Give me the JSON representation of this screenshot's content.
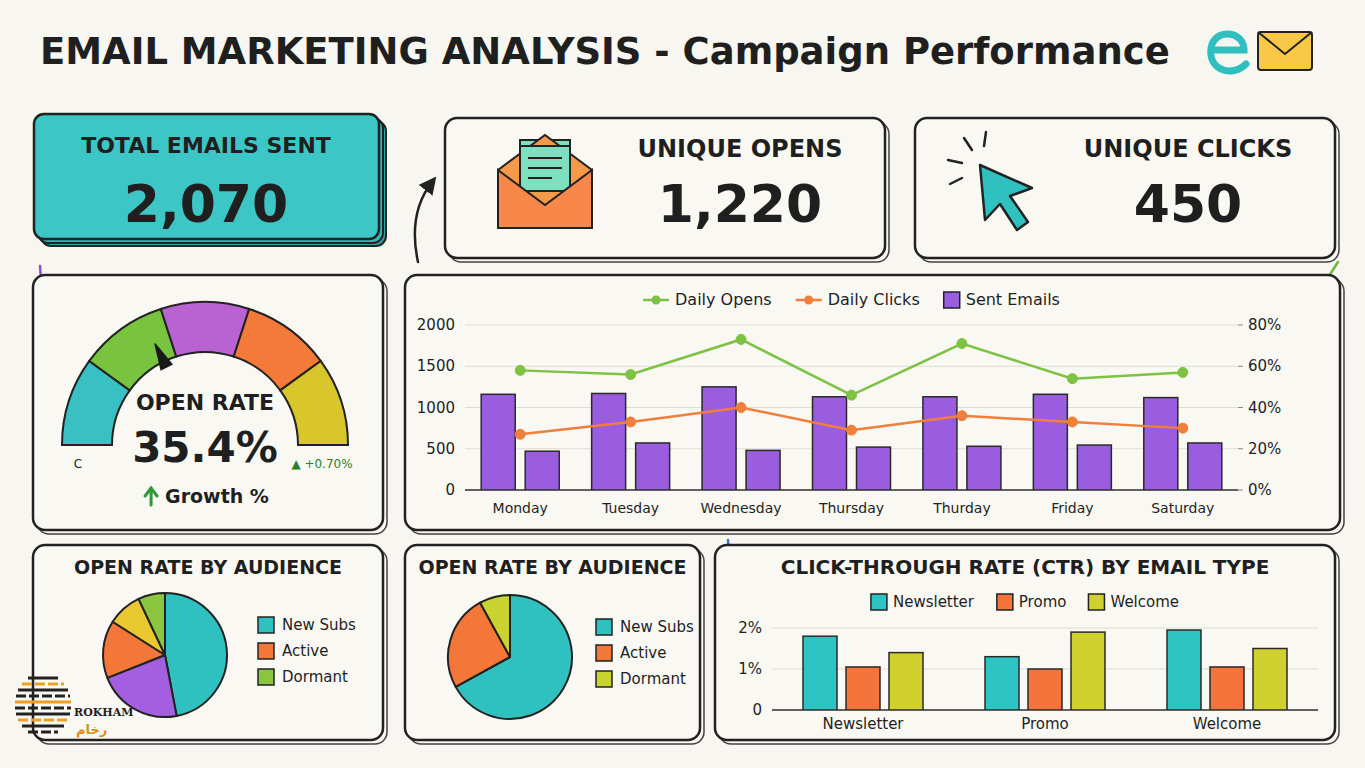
{
  "title": "EMAIL MARKETING ANALYSIS - Campaign Performance",
  "kpis": [
    {
      "label": "TOTAL EMAILS SENT",
      "value": "2,070"
    },
    {
      "label": "UNIQUE OPENS",
      "value": "1,220"
    },
    {
      "label": "UNIQUE CLICKS",
      "value": "450"
    }
  ],
  "watermark": {
    "text": "ROKHAM",
    "subtext": "رخام"
  },
  "chart_data": [
    {
      "type": "gauge",
      "title": "OPEN RATE",
      "value": 35.4,
      "value_label": "35.4%",
      "subtitle": "Growth %",
      "annotations": [
        "▲ +0.70%",
        "C"
      ],
      "ylim": [
        0,
        100
      ],
      "colors": [
        "#39c0c3",
        "#78c43e",
        "#b863d1",
        "#f47a3a",
        "#d9c62a"
      ]
    },
    {
      "type": "bar",
      "categories": [
        "Monday",
        "Tuesday",
        "Wednesday",
        "Thursday",
        "Thurday",
        "Friday",
        "Saturday"
      ],
      "series": [
        {
          "name": "Daily Opens",
          "type": "line",
          "color": "#7dc242",
          "marker": "circle",
          "axis": "y2",
          "values": [
            58,
            56,
            73,
            46,
            71,
            54,
            57
          ]
        },
        {
          "name": "Daily Clicks",
          "type": "line",
          "color": "#f07f3c",
          "marker": "circle",
          "axis": "y2",
          "values": [
            27,
            33,
            40,
            29,
            36,
            33,
            30
          ]
        },
        {
          "name": "Sent Emails",
          "type": "bar",
          "color": "#9a5de0",
          "values": [
            1160,
            1170,
            1250,
            1130,
            1130,
            1160,
            1120
          ]
        },
        {
          "type": "bar",
          "color": "#9a5de0",
          "values": [
            470,
            570,
            480,
            520,
            530,
            545,
            570
          ]
        }
      ],
      "ylim": [
        0,
        2000
      ],
      "yticks": [
        0,
        500,
        1000,
        1500,
        2000
      ],
      "y2lim": [
        0,
        80
      ],
      "y2ticks": [
        {
          "value": 0,
          "label": "0%"
        },
        {
          "value": 20,
          "label": "20%"
        },
        {
          "value": 40,
          "label": "40%"
        },
        {
          "value": 60,
          "label": "60%"
        },
        {
          "value": 80,
          "label": "80%"
        }
      ],
      "grid": true,
      "legend": "top"
    },
    {
      "type": "pie",
      "title": "OPEN RATE BY AUDIENCE",
      "categories": [
        "New Subs",
        null,
        "Active",
        null,
        "Dormant"
      ],
      "values": [
        47,
        22,
        15,
        9,
        7
      ],
      "colors": [
        "#2fc1bf",
        "#a45ee0",
        "#f4773a",
        "#e9c72f",
        "#8cc63f"
      ],
      "legend": "right"
    },
    {
      "type": "pie",
      "title": "OPEN RATE BY AUDIENCE",
      "categories": [
        "New Subs",
        "Active",
        "Dormant"
      ],
      "values": [
        67,
        25,
        8
      ],
      "colors": [
        "#2fc1bf",
        "#f4773a",
        "#c9d430"
      ],
      "legend": "right"
    },
    {
      "type": "bar",
      "title": "CLICK-THROUGH RATE (CTR) BY EMAIL TYPE",
      "categories": [
        "Newsletter",
        "Promo",
        "Welcome"
      ],
      "series": [
        {
          "name": "Newsletter",
          "color": "#2ec4c4",
          "values": [
            1.8,
            1.3,
            1.95
          ]
        },
        {
          "name": "Promo",
          "color": "#f4743b",
          "values": [
            1.05,
            1.0,
            1.05
          ]
        },
        {
          "name": "Welcome",
          "color": "#d0d12e",
          "values": [
            1.4,
            1.9,
            1.5
          ]
        }
      ],
      "ylim": [
        0,
        2
      ],
      "yticks": [
        0,
        {
          "value": 1,
          "label": "1%"
        },
        {
          "value": 2,
          "label": "2%"
        }
      ],
      "grid": true,
      "legend": "top"
    }
  ]
}
